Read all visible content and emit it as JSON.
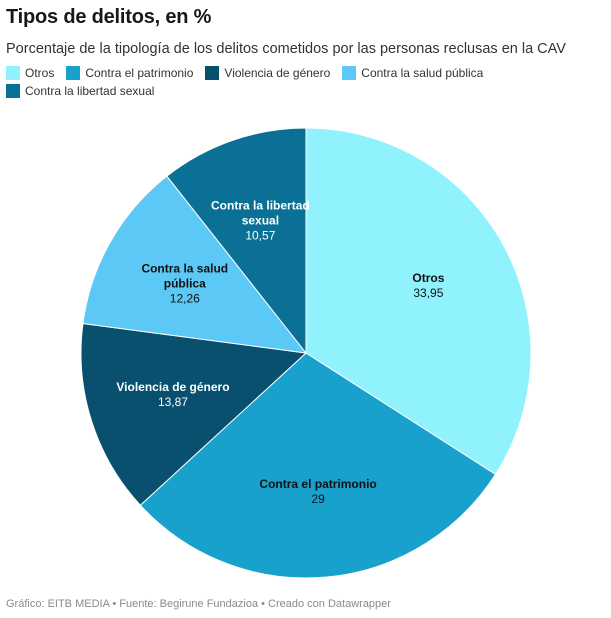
{
  "title": "Tipos de delitos, en %",
  "subtitle": "Porcentaje de la tipología de los delitos cometidos por las personas reclusas en la CAV",
  "footer": "Gráfico: EITB MEDIA • Fuente: Begirune Fundazioa • Creado con Datawrapper",
  "chart_data": {
    "type": "pie",
    "title": "Tipos de delitos, en %",
    "subtitle": "Porcentaje de la tipología de los delitos cometidos por las personas reclusas en la CAV",
    "legend_placement": "top-left",
    "slices": [
      {
        "label": "Otros",
        "value": 33.95,
        "value_label": "33,95",
        "color": "#8ff2fd",
        "label_lines": [
          "Otros"
        ]
      },
      {
        "label": "Contra el patrimonio",
        "value": 29,
        "value_label": "29",
        "color": "#18a1cd",
        "label_lines": [
          "Contra el patrimonio"
        ]
      },
      {
        "label": "Violencia de género",
        "value": 13.87,
        "value_label": "13,87",
        "color": "#09506f",
        "label_lines": [
          "Violencia de género"
        ]
      },
      {
        "label": "Contra la salud pública",
        "value": 12.26,
        "value_label": "12,26",
        "color": "#5bc8f5",
        "label_lines": [
          "Contra la salud",
          "pública"
        ]
      },
      {
        "label": "Contra la libertad sexual",
        "value": 10.57,
        "value_label": "10,57",
        "color": "#0b7095",
        "label_lines": [
          "Contra la libertad",
          "sexual"
        ]
      }
    ]
  }
}
